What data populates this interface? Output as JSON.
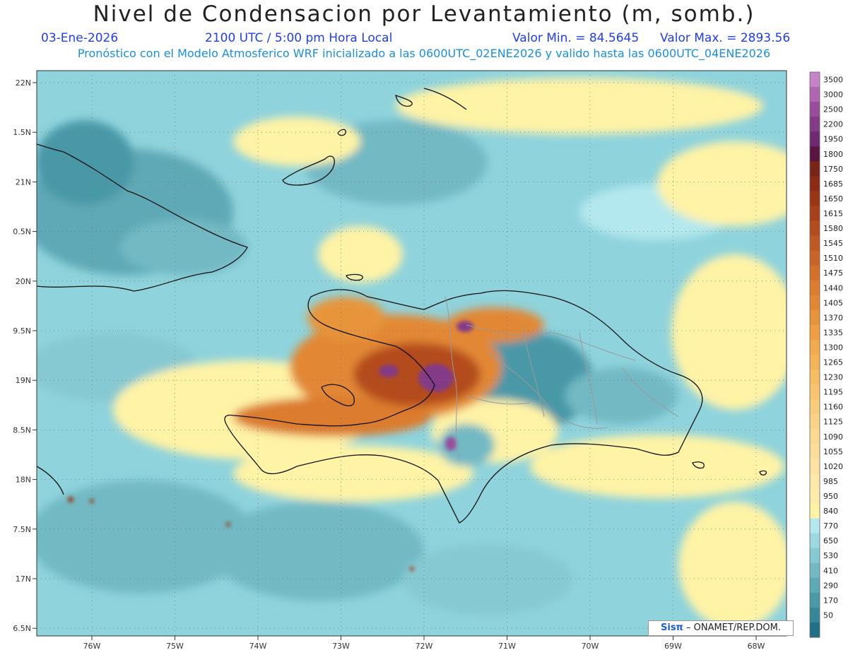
{
  "header": {
    "title": "Nivel de Condensacion por Levantamiento (m, somb.)",
    "date": "03-Ene-2026",
    "time": "2100 UTC / 5:00 pm Hora Local",
    "min_label": "Valor Min. = 84.5645",
    "max_label": "Valor Max. = 2893.56",
    "forecast_info": "Pronóstico con el Modelo Atmosferico WRF inicializado a las 0600UTC_02ENE2026 y valido hasta las  0600UTC_04ENE2026"
  },
  "map": {
    "lat_labels": [
      "22N",
      "1.5N",
      "21N",
      "0.5N",
      "20N",
      "9.5N",
      "19N",
      "8.5N",
      "18N",
      "7.5N",
      "17N",
      "6.5N"
    ],
    "lon_labels": [
      "76W",
      "75W",
      "74W",
      "73W",
      "72W",
      "71W",
      "70W",
      "69W",
      "68W"
    ],
    "grid": "dotted"
  },
  "colorbar": {
    "levels": [
      {
        "label": "3500",
        "color": "#c584c8"
      },
      {
        "label": "3000",
        "color": "#b066b3"
      },
      {
        "label": "2500",
        "color": "#984d9d"
      },
      {
        "label": "2200",
        "color": "#833b87"
      },
      {
        "label": "1950",
        "color": "#6e2a6f"
      },
      {
        "label": "1800",
        "color": "#5a1440"
      },
      {
        "label": "1750",
        "color": "#7a2418"
      },
      {
        "label": "1685",
        "color": "#8a2c14"
      },
      {
        "label": "1650",
        "color": "#9a3615"
      },
      {
        "label": "1615",
        "color": "#a8401a"
      },
      {
        "label": "1580",
        "color": "#b44c1e"
      },
      {
        "label": "1545",
        "color": "#c05822"
      },
      {
        "label": "1510",
        "color": "#ca6426"
      },
      {
        "label": "1475",
        "color": "#d4702a"
      },
      {
        "label": "1440",
        "color": "#dc7c2e"
      },
      {
        "label": "1405",
        "color": "#e28834"
      },
      {
        "label": "1370",
        "color": "#e8943a"
      },
      {
        "label": "1335",
        "color": "#ed9f42"
      },
      {
        "label": "1300",
        "color": "#f1aa4c"
      },
      {
        "label": "1265",
        "color": "#f4b456"
      },
      {
        "label": "1230",
        "color": "#f6bd62"
      },
      {
        "label": "1195",
        "color": "#f8c56e"
      },
      {
        "label": "1160",
        "color": "#f9cc7a"
      },
      {
        "label": "1125",
        "color": "#fad385"
      },
      {
        "label": "1090",
        "color": "#fbd990"
      },
      {
        "label": "1055",
        "color": "#fcde9a"
      },
      {
        "label": "1020",
        "color": "#fde3a3"
      },
      {
        "label": "985",
        "color": "#fde8a9"
      },
      {
        "label": "950",
        "color": "#feeda8"
      },
      {
        "label": "840",
        "color": "#fff3a6"
      },
      {
        "label": "770",
        "color": "#b3e8ee"
      },
      {
        "label": "650",
        "color": "#9bd8df"
      },
      {
        "label": "530",
        "color": "#87c9d2"
      },
      {
        "label": "410",
        "color": "#72b9c4"
      },
      {
        "label": "290",
        "color": "#5ea9b6"
      },
      {
        "label": "170",
        "color": "#4a98a8"
      },
      {
        "label": "50",
        "color": "#37879a"
      },
      {
        "label": "",
        "color": "#246f86"
      }
    ]
  },
  "credit": {
    "brand": "Sisπ",
    "text": " – ONAMET/REP.DOM."
  }
}
